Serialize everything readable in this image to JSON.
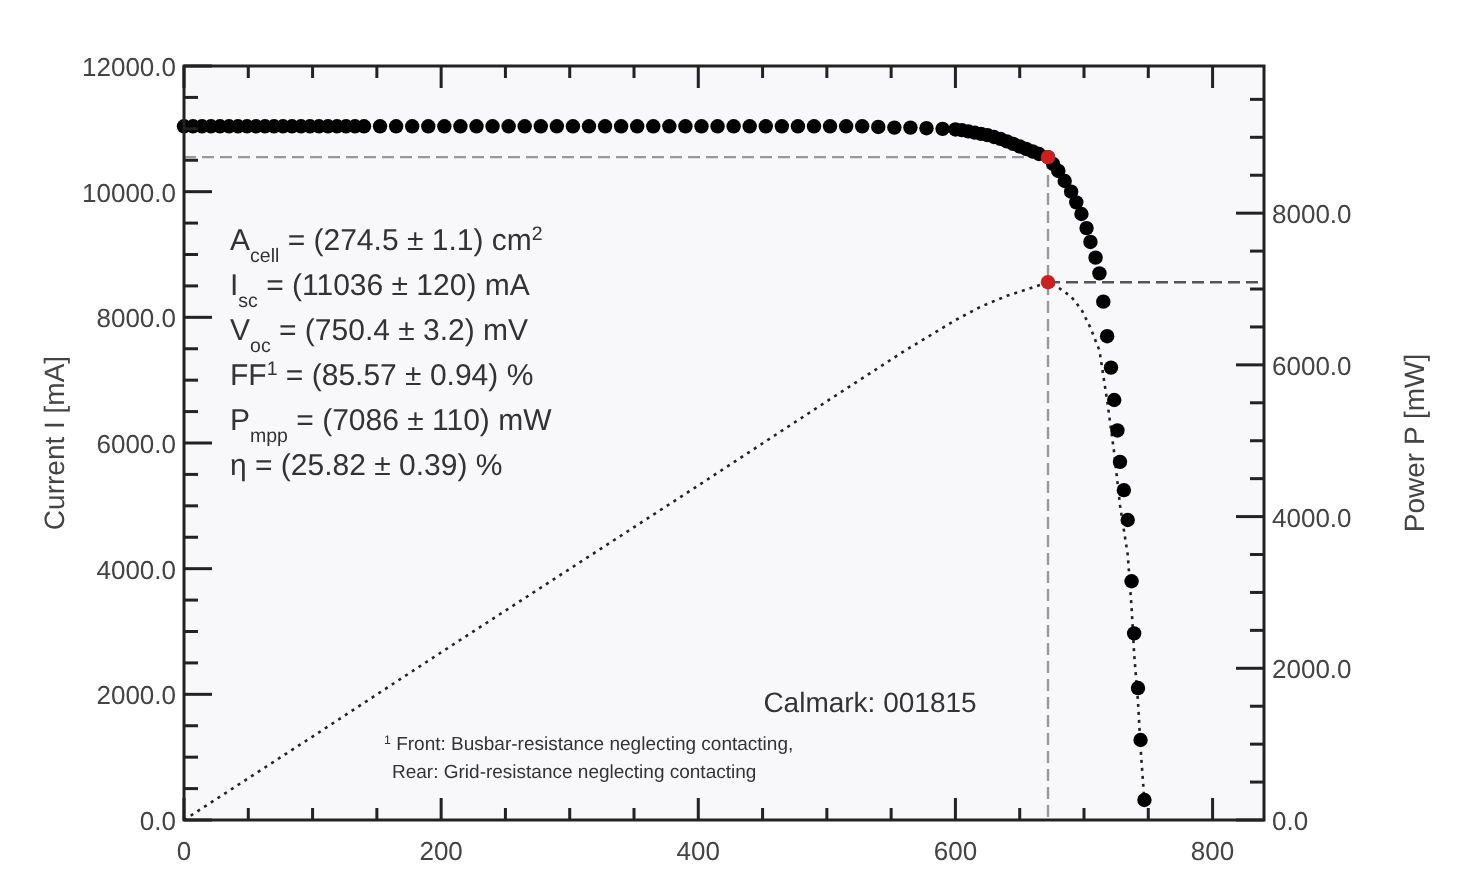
{
  "chart_data": {
    "type": "scatter",
    "ylabel": "Current I [mA]",
    "y2label": "Power P [mW]",
    "xlim": [
      0,
      840
    ],
    "xticks": [
      0,
      {
        "value": 50,
        "label": null
      },
      {
        "value": 100,
        "label": null
      },
      {
        "value": 150,
        "label": null
      },
      200,
      {
        "value": 250,
        "label": null
      },
      {
        "value": 300,
        "label": null
      },
      {
        "value": 350,
        "label": null
      },
      400,
      {
        "value": 450,
        "label": null
      },
      {
        "value": 500,
        "label": null
      },
      {
        "value": 550,
        "label": null
      },
      600,
      {
        "value": 650,
        "label": null
      },
      {
        "value": 700,
        "label": null
      },
      {
        "value": 750,
        "label": null
      },
      800
    ],
    "ylim": [
      0,
      12000
    ],
    "yticks": [
      {
        "value": 0,
        "label": "0.0"
      },
      {
        "value": 500,
        "label": null
      },
      {
        "value": 1000,
        "label": null
      },
      {
        "value": 1500,
        "label": null
      },
      {
        "value": 2000,
        "label": "2000.0"
      },
      {
        "value": 2500,
        "label": null
      },
      {
        "value": 3000,
        "label": null
      },
      {
        "value": 3500,
        "label": null
      },
      {
        "value": 4000,
        "label": "4000.0"
      },
      {
        "value": 4500,
        "label": null
      },
      {
        "value": 5000,
        "label": null
      },
      {
        "value": 5500,
        "label": null
      },
      {
        "value": 6000,
        "label": "6000.0"
      },
      {
        "value": 6500,
        "label": null
      },
      {
        "value": 7000,
        "label": null
      },
      {
        "value": 7500,
        "label": null
      },
      {
        "value": 8000,
        "label": "8000.0"
      },
      {
        "value": 8500,
        "label": null
      },
      {
        "value": 9000,
        "label": null
      },
      {
        "value": 9500,
        "label": null
      },
      {
        "value": 10000,
        "label": "10000.0"
      },
      {
        "value": 10500,
        "label": null
      },
      {
        "value": 11000,
        "label": null
      },
      {
        "value": 11500,
        "label": null
      },
      {
        "value": 12000,
        "label": "12000.0"
      }
    ],
    "y2lim": [
      0,
      9940
    ],
    "y2ticks": [
      {
        "value": 0,
        "label": "0.0"
      },
      {
        "value": 500,
        "label": null
      },
      {
        "value": 1000,
        "label": null
      },
      {
        "value": 1500,
        "label": null
      },
      {
        "value": 2000,
        "label": "2000.0"
      },
      {
        "value": 2500,
        "label": null
      },
      {
        "value": 3000,
        "label": null
      },
      {
        "value": 3500,
        "label": null
      },
      {
        "value": 4000,
        "label": "4000.0"
      },
      {
        "value": 4500,
        "label": null
      },
      {
        "value": 5000,
        "label": null
      },
      {
        "value": 5500,
        "label": null
      },
      {
        "value": 6000,
        "label": "6000.0"
      },
      {
        "value": 6500,
        "label": null
      },
      {
        "value": 7000,
        "label": null
      },
      {
        "value": 7500,
        "label": null
      },
      {
        "value": 8000,
        "label": "8000.0"
      },
      {
        "value": 8500,
        "label": null
      },
      {
        "value": 9000,
        "label": null
      },
      {
        "value": 9500,
        "label": null
      }
    ],
    "grid": false,
    "marker": "circle",
    "series": [
      {
        "type": "line",
        "axis": "y2",
        "color": "#222222",
        "line_style": "dotted",
        "marker": "none",
        "x": [
          0,
          100,
          200,
          300,
          400,
          500,
          560,
          600,
          620,
          640,
          660,
          672,
          680,
          690,
          698,
          705,
          712,
          718,
          723.5,
          728,
          734,
          737,
          739,
          742,
          744,
          747
        ],
        "values": [
          0,
          1100,
          2210,
          3310,
          4410,
          5520,
          6180,
          6590,
          6770,
          6910,
          7020,
          7090,
          7020,
          6900,
          6730,
          6490,
          6190,
          5530,
          4840,
          4150,
          3500,
          2800,
          2190,
          1560,
          950,
          240
        ]
      },
      {
        "color": "#000000",
        "x": [
          0,
          7,
          14,
          21,
          28,
          35,
          42,
          49,
          56,
          63,
          70,
          77,
          84,
          91,
          98,
          105,
          112,
          119,
          126,
          133,
          140,
          152.5,
          165,
          177.5,
          190,
          202.5,
          215,
          227.5,
          240,
          252.5,
          265,
          277.5,
          290,
          302.5,
          315,
          327.5,
          340,
          352.5,
          365,
          377.5,
          390,
          402.5,
          415,
          427.5,
          440,
          452.5,
          465,
          477.5,
          490,
          502.5,
          515,
          527.5,
          540,
          552.5,
          565,
          577.5,
          590,
          600,
          605,
          610,
          615,
          620,
          625,
          630,
          635,
          640,
          645,
          650,
          655,
          660,
          665,
          672,
          676,
          680,
          685,
          690,
          694,
          698,
          702,
          705,
          709,
          712,
          715,
          718,
          721,
          723.5,
          726,
          728,
          731,
          734,
          737,
          739,
          742,
          744,
          747
        ],
        "values": [
          11040,
          11040,
          11040,
          11040,
          11040,
          11040,
          11040,
          11040,
          11040,
          11040,
          11040,
          11040,
          11040,
          11040,
          11040,
          11040,
          11040,
          11040,
          11040,
          11040,
          11040,
          11040,
          11040,
          11040,
          11040,
          11040,
          11040,
          11040,
          11040,
          11040,
          11040,
          11040,
          11040,
          11040,
          11040,
          11040,
          11040,
          11040,
          11040,
          11040,
          11040,
          11040,
          11040,
          11040,
          11040,
          11040,
          11040,
          11040,
          11040,
          11040,
          11040,
          11040,
          11030,
          11020,
          11020,
          11010,
          11000,
          10990,
          10980,
          10960,
          10940,
          10920,
          10900,
          10870,
          10840,
          10800,
          10760,
          10720,
          10680,
          10640,
          10600,
          10550,
          10440,
          10330,
          10170,
          10000,
          9830,
          9645,
          9420,
          9200,
          8950,
          8700,
          8250,
          7700,
          7200,
          6684,
          6200,
          5700,
          5250,
          4775,
          3800,
          2970,
          2100,
          1273,
          318
        ]
      },
      {
        "color": "#cc2020",
        "x": [
          672
        ],
        "values": [
          10550
        ]
      },
      {
        "axis": "y2",
        "color": "#cc2020",
        "x": [
          672
        ],
        "values": [
          7090
        ]
      }
    ],
    "ref_lines": [
      {
        "axis": "x",
        "value": 672,
        "color": "#999999",
        "line_style": "dashed"
      },
      {
        "axis": "y",
        "value": 10550,
        "color": "#999999",
        "line_style": "dashed"
      },
      {
        "axis": "y2",
        "value": 7090,
        "color": "#555555",
        "line_style": "dashed"
      }
    ],
    "annotations": [
      "A$_{cell}$ = (274.5 ± 1.1) cm$^{2}$",
      "I$_{sc}$ = (11036 ± 120) mA",
      "V$_{oc}$ = (750.4 ± 3.2) mV",
      "FF$^{1}$ = (85.57 ± 0.94) %",
      "P$_{mpp}$ = (7086 ± 110) mW",
      "η = (25.82 ± 0.39) %",
      "Calmark: 001815",
      "$^{1}$ Front: Busbar-resistance neglecting contacting,",
      "Rear: Grid-resistance neglecting contacting"
    ]
  }
}
